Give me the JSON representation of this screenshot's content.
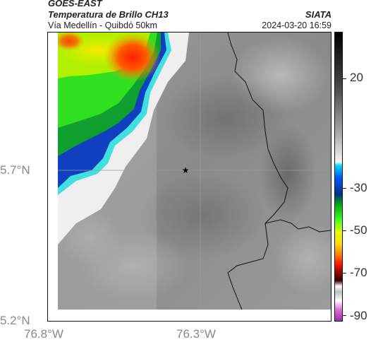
{
  "header": {
    "satellite": "GOES-EAST",
    "product": "Temperatura de Brillo CH13",
    "organization": "SIATA",
    "route": "Vía Medellín - Quibdó 50km",
    "datetime": "2024-03-20 16:59"
  },
  "axes": {
    "lat_ticks": [
      "5.7°N",
      "5.2°N"
    ],
    "lon_ticks": [
      "76.8°W",
      "76.3°W"
    ]
  },
  "colorbar": {
    "ticks": [
      "20",
      "-30",
      "-50",
      "-70",
      "-90"
    ]
  },
  "map": {
    "marker": "star-marker"
  }
}
